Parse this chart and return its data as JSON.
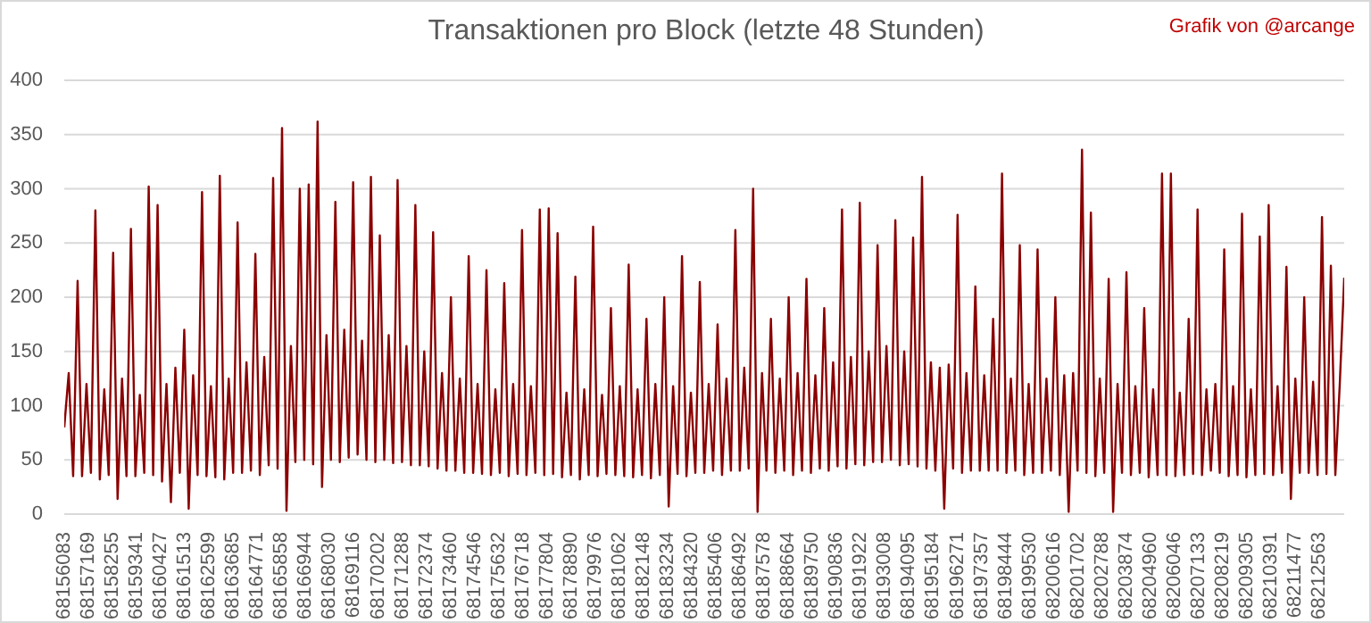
{
  "chart_data": {
    "type": "line",
    "title": "Transaktionen pro Block (letzte 48 Stunden)",
    "annotations": [
      "Grafik von @arcange"
    ],
    "x": [
      68156083,
      68156283,
      68156483,
      68156683,
      68156883,
      68157083,
      68157283,
      68157483,
      68157683,
      68157883,
      68158083,
      68158283,
      68158483,
      68158683,
      68158883,
      68159083,
      68159283,
      68159483,
      68159683,
      68159883,
      68160083,
      68160283,
      68160483,
      68160683,
      68160883,
      68161083,
      68161283,
      68161483,
      68161683,
      68161883,
      68162083,
      68162283,
      68162483,
      68162683,
      68162883,
      68163083,
      68163283,
      68163483,
      68163683,
      68163883,
      68164083,
      68164283,
      68164483,
      68164683,
      68164883,
      68165083,
      68165283,
      68165483,
      68165683,
      68165883,
      68166083,
      68166283,
      68166483,
      68166683,
      68166883,
      68167083,
      68167283,
      68167483,
      68167683,
      68167883,
      68168083,
      68168283,
      68168483,
      68168683,
      68168883,
      68169083,
      68169283,
      68169483,
      68169683,
      68169883,
      68170083,
      68170283,
      68170483,
      68170683,
      68170883,
      68171083,
      68171283,
      68171483,
      68171683,
      68171883,
      68172083,
      68172283,
      68172483,
      68172683,
      68172883,
      68173083,
      68173283,
      68173483,
      68173683,
      68173883,
      68174083,
      68174283,
      68174483,
      68174683,
      68174883,
      68175083,
      68175283,
      68175483,
      68175683,
      68175883,
      68176083,
      68176283,
      68176483,
      68176683,
      68176883,
      68177083,
      68177283,
      68177483,
      68177683,
      68177883,
      68178083,
      68178283,
      68178483,
      68178683,
      68178883,
      68179083,
      68179283,
      68179483,
      68179683,
      68179883,
      68180083,
      68180283,
      68180483,
      68180683,
      68180883,
      68181083,
      68181283,
      68181483,
      68181683,
      68181883,
      68182083,
      68182283,
      68182483,
      68182683,
      68182883,
      68183083,
      68183283,
      68183483,
      68183683,
      68183883,
      68184083,
      68184283,
      68184483,
      68184683,
      68184883,
      68185083,
      68185283,
      68185483,
      68185683,
      68185883,
      68186083,
      68186283,
      68186483,
      68186683,
      68186883,
      68187083,
      68187283,
      68187483,
      68187683,
      68187883,
      68188083,
      68188283,
      68188483,
      68188683,
      68188883,
      68189083,
      68189283,
      68189483,
      68189683,
      68189883,
      68190083,
      68190283,
      68190483,
      68190683,
      68190883,
      68191083,
      68191283,
      68191483,
      68191683,
      68191883,
      68192083,
      68192283,
      68192483,
      68192683,
      68192883,
      68193083,
      68193283,
      68193483,
      68193683,
      68193883,
      68194083,
      68194283,
      68194483,
      68194683,
      68194883,
      68195083,
      68195283,
      68195483,
      68195683,
      68195883,
      68196083,
      68196283,
      68196483,
      68196683,
      68196883,
      68197083,
      68197283,
      68197483,
      68197683,
      68197883,
      68198083,
      68198283,
      68198483,
      68198683,
      68198883,
      68199083,
      68199283,
      68199483,
      68199683,
      68199883,
      68200083,
      68200283,
      68200483,
      68200683,
      68200883,
      68201083,
      68201283,
      68201483,
      68201683,
      68201883,
      68202083,
      68202283,
      68202483,
      68202683,
      68202883,
      68203083,
      68203283,
      68203483,
      68203683,
      68203883,
      68204083,
      68204283,
      68204483,
      68204683,
      68204883,
      68205083,
      68205283,
      68205483,
      68205683,
      68205883,
      68206083,
      68206283,
      68206483,
      68206683,
      68206883,
      68207083,
      68207283,
      68207483,
      68207683,
      68207883,
      68208083,
      68208283,
      68208483,
      68208683,
      68208883,
      68209083,
      68209283,
      68209483,
      68209683,
      68209883,
      68210083,
      68210283,
      68210483,
      68210683,
      68210883,
      68211083,
      68211283,
      68211483,
      68211683,
      68211883,
      68212083,
      68212283,
      68212483,
      68212683,
      68212883,
      68213083,
      68213283,
      68213483,
      68213683
    ],
    "series": [
      {
        "color": "#8b0000",
        "values": [
          80,
          130,
          35,
          215,
          35,
          120,
          38,
          280,
          32,
          115,
          36,
          241,
          14,
          125,
          35,
          263,
          35,
          110,
          38,
          302,
          36,
          285,
          30,
          120,
          11,
          135,
          38,
          170,
          5,
          128,
          36,
          297,
          35,
          118,
          34,
          312,
          32,
          125,
          38,
          269,
          38,
          140,
          40,
          240,
          36,
          145,
          45,
          310,
          42,
          356,
          3,
          155,
          48,
          300,
          50,
          304,
          46,
          362,
          25,
          165,
          50,
          288,
          48,
          170,
          52,
          306,
          55,
          160,
          50,
          311,
          48,
          257,
          50,
          165,
          47,
          308,
          48,
          155,
          45,
          285,
          45,
          150,
          44,
          260,
          42,
          130,
          40,
          200,
          40,
          125,
          38,
          238,
          38,
          120,
          37,
          225,
          36,
          115,
          38,
          213,
          35,
          120,
          37,
          262,
          36,
          118,
          38,
          281,
          36,
          282,
          37,
          259,
          34,
          112,
          36,
          219,
          32,
          115,
          36,
          265,
          35,
          110,
          37,
          190,
          36,
          118,
          35,
          230,
          34,
          115,
          36,
          180,
          33,
          120,
          36,
          200,
          7,
          118,
          37,
          238,
          35,
          112,
          38,
          214,
          38,
          120,
          40,
          175,
          36,
          125,
          40,
          262,
          40,
          135,
          42,
          300,
          2,
          130,
          40,
          180,
          38,
          125,
          40,
          200,
          36,
          130,
          40,
          217,
          38,
          128,
          42,
          190,
          40,
          140,
          44,
          281,
          42,
          145,
          46,
          287,
          45,
          150,
          48,
          248,
          48,
          155,
          50,
          271,
          45,
          150,
          46,
          255,
          44,
          311,
          42,
          140,
          40,
          135,
          5,
          138,
          42,
          276,
          38,
          130,
          40,
          210,
          40,
          128,
          40,
          180,
          40,
          314,
          38,
          125,
          40,
          248,
          36,
          120,
          38,
          244,
          38,
          125,
          40,
          200,
          36,
          128,
          2,
          130,
          40,
          336,
          38,
          278,
          35,
          125,
          38,
          217,
          2,
          120,
          38,
          223,
          36,
          118,
          38,
          190,
          34,
          115,
          36,
          314,
          36,
          314,
          35,
          112,
          36,
          180,
          37,
          281,
          36,
          115,
          40,
          120,
          38,
          244,
          35,
          118,
          36,
          277,
          34,
          115,
          36,
          256,
          37,
          285,
          36,
          118,
          38,
          228,
          14,
          125,
          38,
          200,
          38,
          122,
          36,
          274,
          37,
          229,
          36,
          120,
          218
        ]
      }
    ],
    "xlim": [
      68156083,
      68213683
    ],
    "xticks": [
      68156083,
      68157169,
      68158255,
      68159341,
      68160427,
      68161513,
      68162599,
      68163685,
      68164771,
      68165858,
      68166944,
      68168030,
      68169116,
      68170202,
      68171288,
      68172374,
      68173460,
      68174546,
      68175632,
      68176718,
      68177804,
      68178890,
      68179976,
      68181062,
      68182148,
      68183234,
      68184320,
      68185406,
      68186492,
      68187578,
      68188664,
      68189750,
      68190836,
      68191922,
      68193008,
      68194095,
      68195184,
      68196271,
      68197357,
      68198444,
      68199530,
      68200616,
      68201702,
      68202788,
      68203874,
      68204960,
      68206046,
      68207133,
      68208219,
      68209305,
      68210391,
      68211477,
      68212563
    ],
    "ylim": [
      0,
      400
    ],
    "yticks": [
      0,
      50,
      100,
      150,
      200,
      250,
      300,
      350,
      400
    ],
    "grid": "y",
    "marker": "none"
  }
}
